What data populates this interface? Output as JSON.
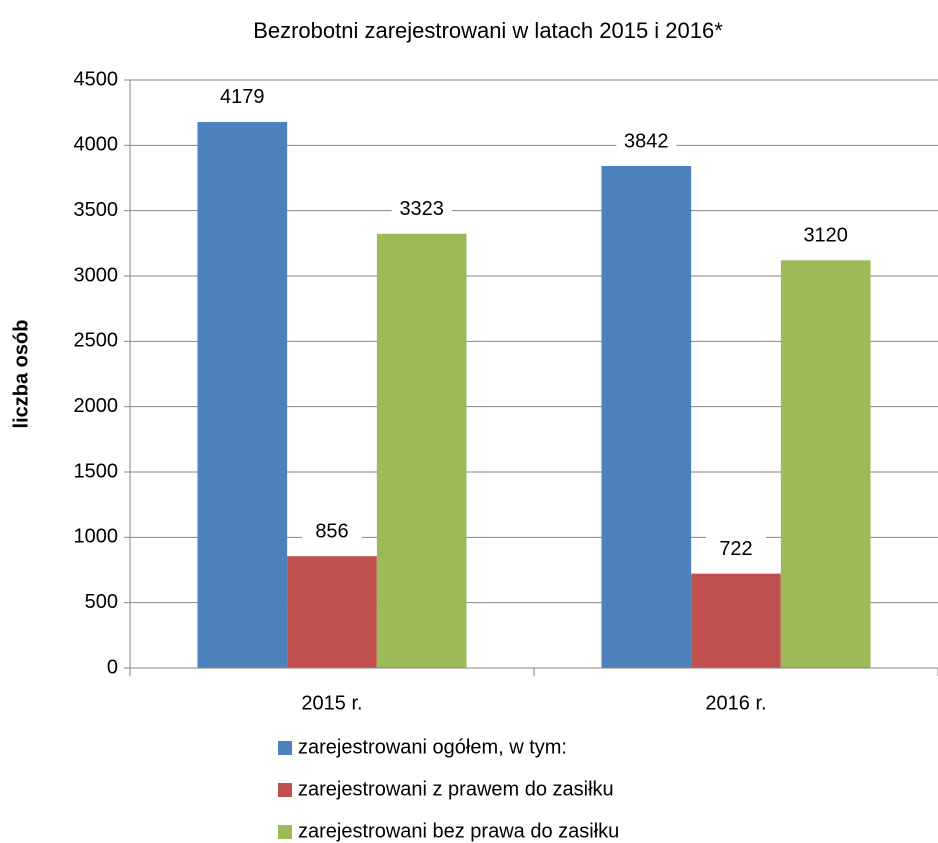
{
  "chart_data": {
    "type": "bar",
    "title": "Bezrobotni zarejestrowani w latach 2015 i 2016*",
    "y_label": "liczba osób",
    "categories": [
      "2015 r.",
      "2016 r."
    ],
    "series": [
      {
        "name": "zarejestrowani ogółem, w tym:",
        "color": "#4f81bd",
        "values": [
          4179,
          3842
        ]
      },
      {
        "name": "zarejestrowani z prawem do zasiłku",
        "color": "#c0504d",
        "values": [
          856,
          722
        ]
      },
      {
        "name": "zarejestrowani bez prawa do zasiłku",
        "color": "#9bbb59",
        "values": [
          3323,
          3120
        ]
      }
    ],
    "ylim": [
      0,
      4500
    ],
    "yticks": [
      0,
      500,
      1000,
      1500,
      2000,
      2500,
      3000,
      3500,
      4000,
      4500
    ],
    "grid": true,
    "legend": "bottom"
  }
}
